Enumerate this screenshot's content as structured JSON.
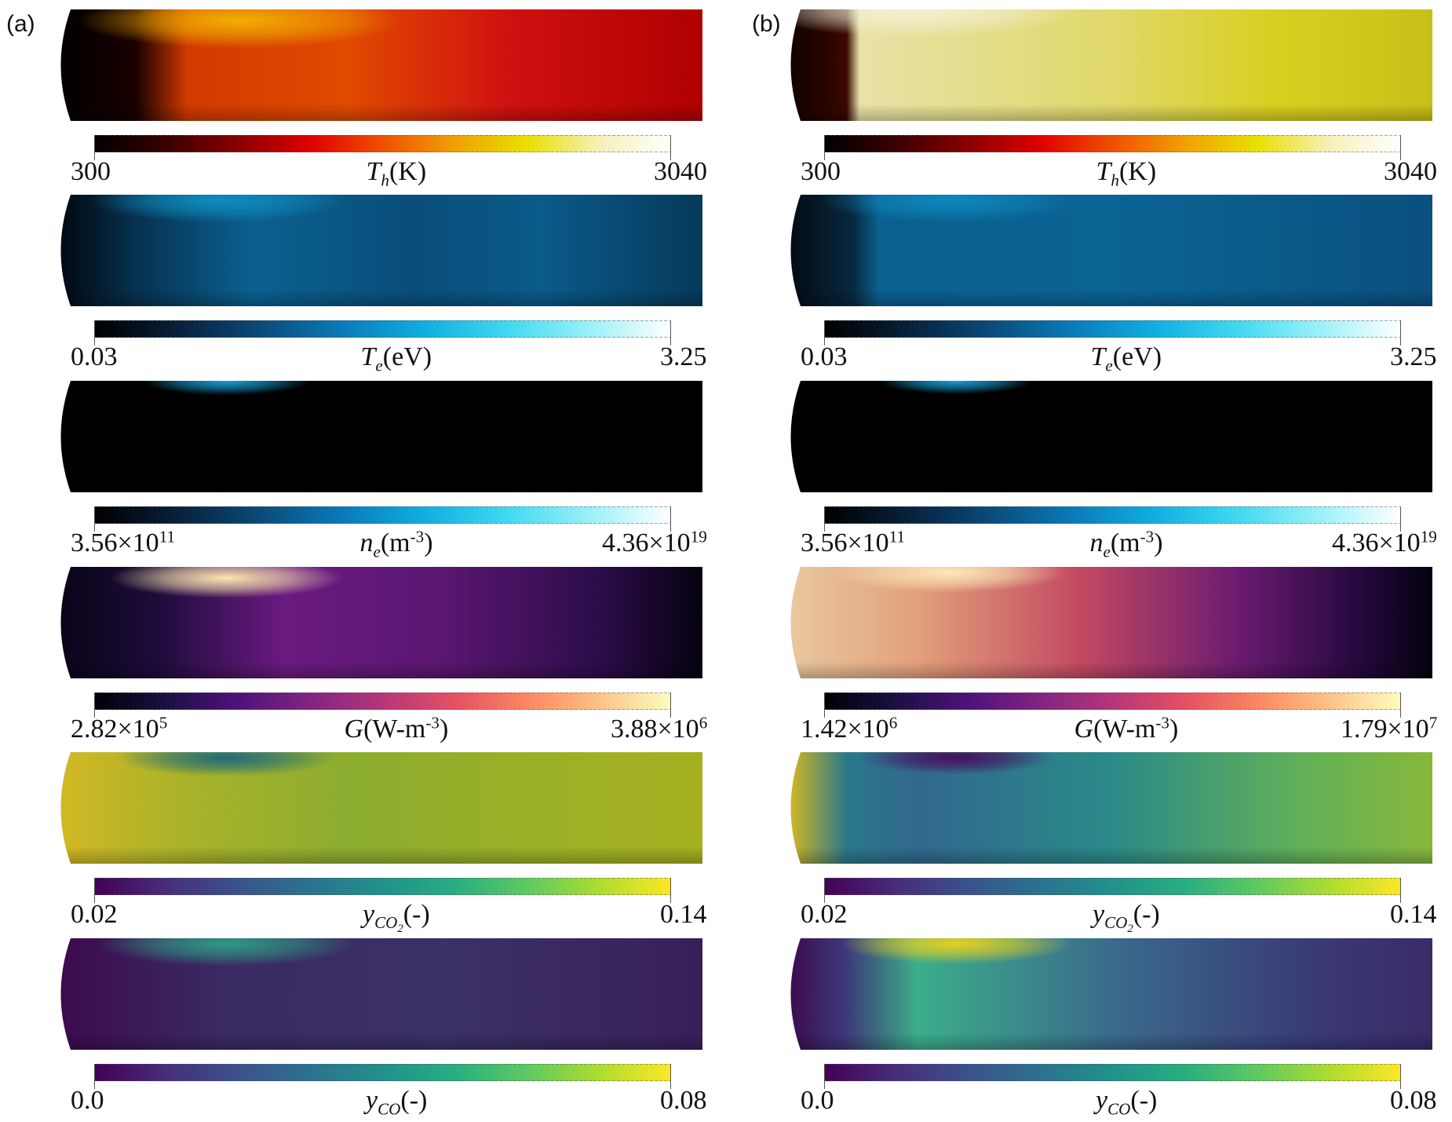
{
  "panels": [
    {
      "label": "(a)",
      "rows": [
        {
          "field": "Th",
          "var": "T",
          "sub": "h",
          "unit": "(K)",
          "min": "300",
          "max": "3040"
        },
        {
          "field": "Te",
          "var": "T",
          "sub": "e",
          "unit": "(eV)",
          "min": "0.03",
          "max": "3.25"
        },
        {
          "field": "ne",
          "var": "n",
          "sub": "e",
          "unit_pre": "(m",
          "unit_sup": "-3",
          "unit_post": ")",
          "min_base": "3.56×10",
          "min_exp": "11",
          "max_base": "4.36×10",
          "max_exp": "19"
        },
        {
          "field": "G",
          "var": "G",
          "sub": "",
          "unit_pre": "(W-m",
          "unit_sup": "-3",
          "unit_post": ")",
          "min_base": "2.82×10",
          "min_exp": "5",
          "max_base": "3.88×10",
          "max_exp": "6"
        },
        {
          "field": "yco2",
          "var": "y",
          "sub": "CO",
          "sub_sub": "2",
          "unit": "(-)",
          "min": "0.02",
          "max": "0.14"
        },
        {
          "field": "yco",
          "var": "y",
          "sub": "CO",
          "unit": "(-)",
          "min": "0.0",
          "max": "0.08"
        }
      ]
    },
    {
      "label": "(b)",
      "rows": [
        {
          "field": "Th",
          "var": "T",
          "sub": "h",
          "unit": "(K)",
          "min": "300",
          "max": "3040"
        },
        {
          "field": "Te",
          "var": "T",
          "sub": "e",
          "unit": "(eV)",
          "min": "0.03",
          "max": "3.25"
        },
        {
          "field": "ne",
          "var": "n",
          "sub": "e",
          "unit_pre": "(m",
          "unit_sup": "-3",
          "unit_post": ")",
          "min_base": "3.56×10",
          "min_exp": "11",
          "max_base": "4.36×10",
          "max_exp": "19"
        },
        {
          "field": "G",
          "var": "G",
          "sub": "",
          "unit_pre": "(W-m",
          "unit_sup": "-3",
          "unit_post": ")",
          "min_base": "1.42×10",
          "min_exp": "6",
          "max_base": "1.79×10",
          "max_exp": "7"
        },
        {
          "field": "yco2",
          "var": "y",
          "sub": "CO",
          "sub_sub": "2",
          "unit": "(-)",
          "min": "0.02",
          "max": "0.14"
        },
        {
          "field": "yco",
          "var": "y",
          "sub": "CO",
          "unit": "(-)",
          "min": "0.0",
          "max": "0.08"
        }
      ]
    }
  ],
  "colormaps": {
    "heat": [
      "#000000",
      "#3a0000",
      "#8a0000",
      "#e00000",
      "#f05000",
      "#f0a000",
      "#e8e000",
      "#f6f0b8",
      "#ffffff"
    ],
    "ice": [
      "#000000",
      "#07203a",
      "#0a4a78",
      "#0a7ab8",
      "#10aee0",
      "#40d8f0",
      "#9af0f8",
      "#ffffff"
    ],
    "magma": [
      "#000004",
      "#1c1044",
      "#4f127b",
      "#812581",
      "#b5367a",
      "#e55064",
      "#fb8761",
      "#fec287",
      "#fcfdbf"
    ],
    "viridis": [
      "#440154",
      "#472d7b",
      "#3b528b",
      "#2c728e",
      "#21918c",
      "#28ae80",
      "#5ec962",
      "#addc30",
      "#fde725"
    ]
  }
}
